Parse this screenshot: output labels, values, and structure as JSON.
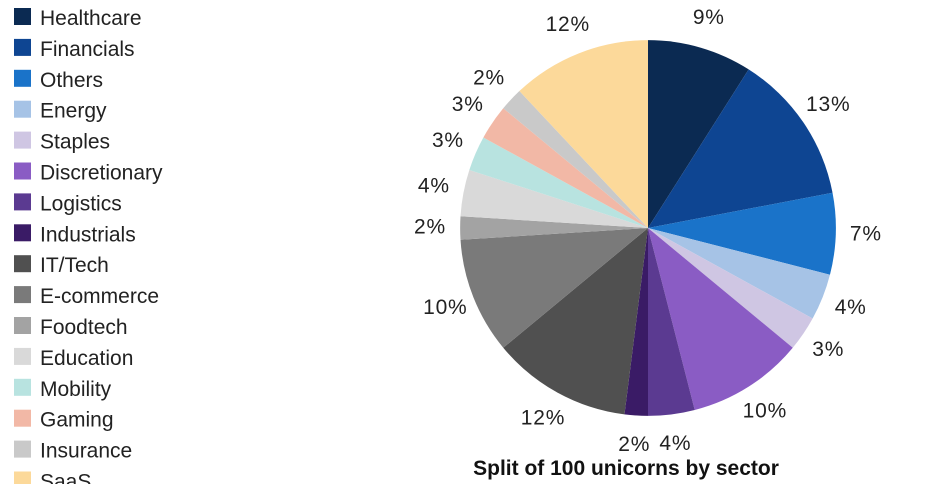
{
  "chart_data": {
    "type": "pie",
    "title": "Split of 100 unicorns by sector",
    "slices": [
      {
        "name": "Healthcare",
        "value": 9,
        "label": "9%",
        "color": "#0b2a52"
      },
      {
        "name": "Financials",
        "value": 13,
        "label": "13%",
        "color": "#0e4592"
      },
      {
        "name": "Others",
        "value": 7,
        "label": "7%",
        "color": "#1a73c9"
      },
      {
        "name": "Energy",
        "value": 4,
        "label": "4%",
        "color": "#a6c3e6"
      },
      {
        "name": "Staples",
        "value": 3,
        "label": "3%",
        "color": "#cfc6e3"
      },
      {
        "name": "Discretionary",
        "value": 10,
        "label": "10%",
        "color": "#8a5cc4"
      },
      {
        "name": "Logistics",
        "value": 4,
        "label": "4%",
        "color": "#5b3a91"
      },
      {
        "name": "Industrials",
        "value": 2,
        "label": "2%",
        "color": "#3a1b66"
      },
      {
        "name": "IT/Tech",
        "value": 12,
        "label": "12%",
        "color": "#505050"
      },
      {
        "name": "E-commerce",
        "value": 10,
        "label": "10%",
        "color": "#7a7a7a"
      },
      {
        "name": "Foodtech",
        "value": 2,
        "label": "2%",
        "color": "#a3a3a3"
      },
      {
        "name": "Education",
        "value": 4,
        "label": "4%",
        "color": "#d9d9d9"
      },
      {
        "name": "Mobility",
        "value": 3,
        "label": "3%",
        "color": "#b8e3e0"
      },
      {
        "name": "Gaming",
        "value": 3,
        "label": "3%",
        "color": "#f2b8a6"
      },
      {
        "name": "Insurance",
        "value": 2,
        "label": "2%",
        "color": "#c9c9c9"
      },
      {
        "name": "SaaS",
        "value": 12,
        "label": "12%",
        "color": "#fcd99a"
      }
    ],
    "legend_position": "left"
  }
}
